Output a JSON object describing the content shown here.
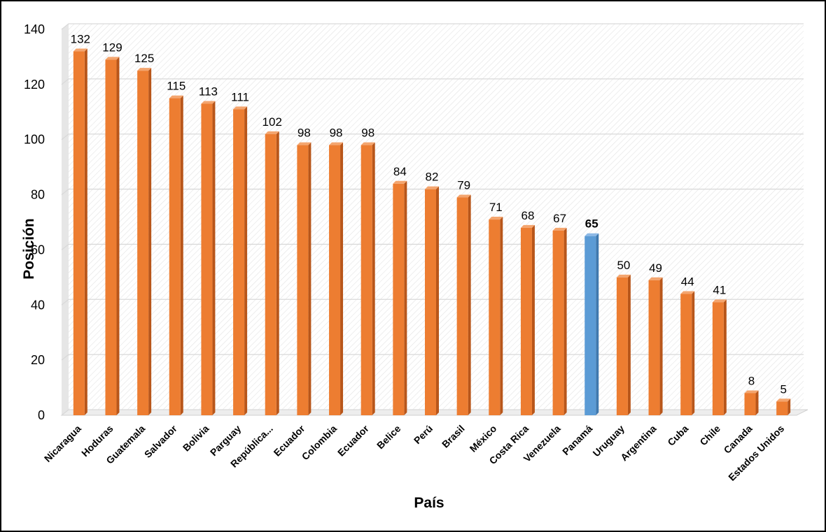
{
  "chart_data": {
    "type": "bar",
    "xlabel": "País",
    "ylabel": "Posición",
    "ylim": [
      0,
      140
    ],
    "yticks": [
      0,
      20,
      40,
      60,
      80,
      100,
      120,
      140
    ],
    "grid": true,
    "categories": [
      "Nicaragua",
      "Hoduras",
      "Guatemala",
      "Salvador",
      "Bolivia",
      "Parguay",
      "República...",
      "Ecuador",
      "Colombia",
      "Ecuador",
      "Belice",
      "Perú",
      "Brasil",
      "México",
      "Costa Rica",
      "Venezuela",
      "Panamá",
      "Uruguay",
      "Argentina",
      "Cuba",
      "Chile",
      "Canada",
      "Estados Unidos"
    ],
    "values": [
      132,
      129,
      125,
      115,
      113,
      111,
      102,
      98,
      98,
      98,
      84,
      82,
      79,
      71,
      68,
      67,
      65,
      50,
      49,
      44,
      41,
      8,
      5
    ],
    "highlight_index": 16,
    "colors": {
      "bar": "#ED7D31",
      "bar_side": "#B8561A",
      "bar_top": "#F4A56E",
      "highlight": "#5B9BD5",
      "highlight_side": "#3F78AE",
      "highlight_top": "#8DB9E6",
      "grid": "#D9D9D9",
      "hatch": "#E3E3E3"
    }
  }
}
